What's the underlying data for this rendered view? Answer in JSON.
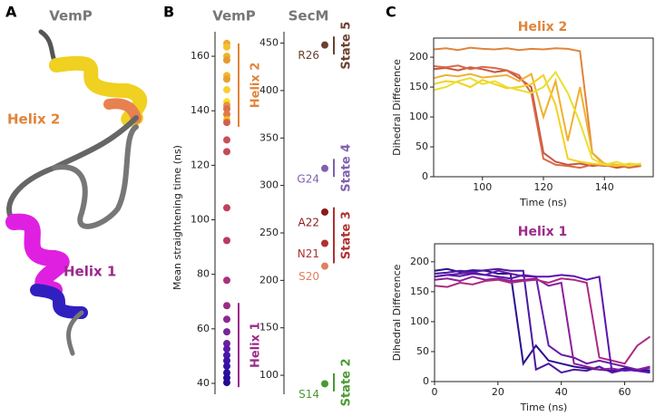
{
  "panel_a": {
    "label": "A",
    "title": "VemP",
    "annotations": [
      {
        "text": "Helix 2",
        "color": "#e0843a"
      },
      {
        "text": "Helix 1",
        "color": "#9b2a8a"
      }
    ]
  },
  "chart_data": [
    {
      "type": "strip",
      "panel_label": "B",
      "title": "VemP",
      "ylabel": "Mean straightening time (ns)",
      "ylim": [
        36,
        169
      ],
      "yticks": [
        40,
        60,
        80,
        100,
        120,
        140,
        160
      ],
      "values": [
        164.7,
        163.4,
        160,
        158.6,
        152.9,
        151.6,
        147.7,
        143.3,
        142,
        140.7,
        138.7,
        136.7,
        135.7,
        129.3,
        125,
        104.4,
        92.4,
        77.8,
        68.5,
        63.5,
        58.9,
        54.6,
        52.6,
        50.3,
        48.3,
        46.3,
        43.9,
        42,
        40.3
      ],
      "colors": [
        "#f0a830",
        "#f5c030",
        "#f0b030",
        "#e89a30",
        "#f0b830",
        "#e8a030",
        "#f5d030",
        "#f8e020",
        "#e89040",
        "#d97050",
        "#e07a40",
        "#f0c020",
        "#d06050",
        "#c8505a",
        "#c44a58",
        "#c04060",
        "#b83a6a",
        "#a83278",
        "#9a2c82",
        "#8a2890",
        "#7a2498",
        "#6a20a0",
        "#5a1ca8",
        "#4a18a8",
        "#3c14a8",
        "#3412a0",
        "#2c10a0",
        "#280e98",
        "#240c90"
      ],
      "brackets": [
        {
          "label": "Helix 2",
          "range": [
            134.1,
            164.7
          ],
          "color": "#e0843a"
        },
        {
          "label": "Helix 1",
          "range": [
            38.6,
            69.5
          ],
          "color": "#9b2a8a"
        }
      ]
    },
    {
      "type": "strip",
      "title": "SecM",
      "ylim": [
        80,
        462
      ],
      "yticks": [
        100,
        150,
        200,
        250,
        300,
        350,
        400,
        450
      ],
      "values": [
        448,
        318,
        272,
        239,
        215,
        91
      ],
      "labels": [
        "R26",
        "G24",
        "A22",
        "N21",
        "S20",
        "S14"
      ],
      "colors": [
        "#6b4030",
        "#8060b0",
        "#8a1a1a",
        "#b03030",
        "#e08060",
        "#4a9a30"
      ],
      "brackets": [
        {
          "label": "State 5",
          "range": [
            438,
            457
          ],
          "color": "#6b4030"
        },
        {
          "label": "State 4",
          "range": [
            309,
            328
          ],
          "color": "#8060b0"
        },
        {
          "label": "State 3",
          "range": [
            218,
            277
          ],
          "color": "#b03030"
        },
        {
          "label": "State 2",
          "range": [
            83,
            102
          ],
          "color": "#4a9a30"
        }
      ]
    },
    {
      "type": "line",
      "panel_label": "C",
      "title": "Helix 2",
      "title_color": "#e0843a",
      "xlabel": "Time (ns)",
      "ylabel": "Dihedral Difference",
      "xlim": [
        84,
        156
      ],
      "ylim": [
        0,
        232
      ],
      "xticks": [
        100,
        120,
        140
      ],
      "yticks": [
        0,
        50,
        100,
        150,
        200
      ],
      "x": [
        84,
        88,
        92,
        96,
        100,
        104,
        108,
        112,
        116,
        120,
        124,
        128,
        132,
        136,
        140,
        144,
        148,
        152
      ],
      "series": [
        {
          "color": "#e0843a",
          "values": [
            213,
            215,
            212,
            216,
            214,
            213,
            215,
            212,
            214,
            213,
            215,
            214,
            210,
            40,
            20,
            18,
            20,
            18
          ]
        },
        {
          "color": "#c8553d",
          "values": [
            180,
            182,
            178,
            183,
            180,
            175,
            178,
            165,
            150,
            40,
            25,
            20,
            22,
            18,
            20,
            15,
            18,
            20
          ]
        },
        {
          "color": "#d9694a",
          "values": [
            185,
            183,
            186,
            180,
            184,
            182,
            178,
            170,
            140,
            30,
            20,
            18,
            15,
            20,
            18,
            20,
            15,
            18
          ]
        },
        {
          "color": "#f0b030",
          "values": [
            165,
            170,
            168,
            172,
            166,
            168,
            170,
            160,
            172,
            100,
            160,
            60,
            150,
            40,
            22,
            20,
            18,
            22
          ]
        },
        {
          "color": "#f5d020",
          "values": [
            155,
            160,
            158,
            150,
            162,
            155,
            148,
            150,
            155,
            170,
            120,
            30,
            25,
            22,
            20,
            18,
            22,
            20
          ]
        },
        {
          "color": "#e8e030",
          "values": [
            145,
            150,
            160,
            165,
            155,
            160,
            150,
            145,
            140,
            150,
            175,
            140,
            90,
            30,
            20,
            25,
            18,
            22
          ]
        }
      ]
    },
    {
      "type": "line",
      "title": "Helix 1",
      "title_color": "#9b2a8a",
      "xlabel": "Time (ns)",
      "ylabel": "Dihedral Difference",
      "xlim": [
        0,
        69
      ],
      "ylim": [
        0,
        230
      ],
      "xticks": [
        0,
        20,
        40,
        60
      ],
      "yticks": [
        0,
        50,
        100,
        150,
        200
      ],
      "x": [
        0,
        4,
        8,
        12,
        16,
        20,
        24,
        28,
        32,
        36,
        40,
        44,
        48,
        52,
        56,
        60,
        64,
        68
      ],
      "series": [
        {
          "color": "#2b0f8f",
          "values": [
            185,
            188,
            183,
            186,
            185,
            180,
            180,
            30,
            60,
            35,
            30,
            25,
            22,
            20,
            18,
            22,
            20,
            18
          ]
        },
        {
          "color": "#4b18a0",
          "values": [
            180,
            182,
            185,
            183,
            186,
            188,
            185,
            185,
            20,
            30,
            15,
            20,
            18,
            25,
            15,
            20,
            18,
            15
          ]
        },
        {
          "color": "#6a1aa8",
          "values": [
            175,
            178,
            180,
            182,
            178,
            185,
            180,
            176,
            175,
            60,
            45,
            40,
            30,
            35,
            30,
            25,
            20,
            22
          ]
        },
        {
          "color": "#8a1f9a",
          "values": [
            170,
            172,
            168,
            175,
            170,
            172,
            168,
            170,
            172,
            160,
            165,
            30,
            25,
            20,
            22,
            18,
            20,
            25
          ]
        },
        {
          "color": "#ad2a82",
          "values": [
            160,
            158,
            165,
            162,
            168,
            170,
            165,
            168,
            170,
            165,
            172,
            170,
            165,
            40,
            35,
            30,
            60,
            75
          ]
        },
        {
          "color": "#5a14b0",
          "values": [
            175,
            178,
            176,
            180,
            178,
            175,
            172,
            178,
            175,
            175,
            178,
            176,
            170,
            175,
            15,
            20,
            18,
            15
          ]
        }
      ]
    }
  ]
}
